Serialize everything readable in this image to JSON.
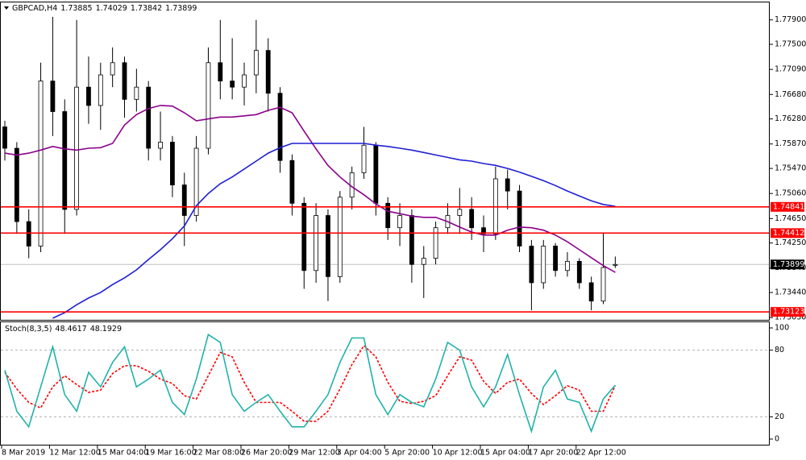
{
  "chart_data": [
    {
      "type": "candlestick",
      "title": "GBPCAD,H4",
      "categories": [
        "8 Mar 2019",
        null,
        null,
        null,
        "12 Mar 12:00",
        null,
        null,
        null,
        "15 Mar 04:00",
        null,
        null,
        null,
        "19 Mar 16:00",
        null,
        null,
        null,
        "22 Mar 08:00",
        null,
        null,
        null,
        "26 Mar 20:00",
        null,
        null,
        null,
        "29 Mar 12:00",
        null,
        null,
        null,
        "3 Apr 04:00",
        null,
        null,
        null,
        "5 Apr 20:00",
        null,
        null,
        null,
        "10 Apr 12:00",
        null,
        null,
        null,
        "15 Apr 04:00",
        null,
        null,
        null,
        "17 Apr 20:00",
        null,
        null,
        null,
        "22 Apr 12:00",
        null,
        null,
        null
      ],
      "open": [
        1.7615,
        1.758,
        1.746,
        1.742,
        1.769,
        1.764,
        1.748,
        1.768,
        1.765,
        1.77,
        1.772,
        1.766,
        1.768,
        1.758,
        1.759,
        1.752,
        1.747,
        1.758,
        1.772,
        1.769,
        1.768,
        1.77,
        1.774,
        1.767,
        1.756,
        1.749,
        1.738,
        1.747,
        1.737,
        1.75,
        1.754,
        1.7585,
        1.749,
        1.745,
        1.747,
        1.739,
        1.74,
        1.745,
        1.747,
        1.748,
        1.745,
        1.744,
        1.753,
        1.751,
        1.742,
        1.736,
        1.742,
        1.738,
        1.7395,
        1.736,
        1.733,
        1.73885
      ],
      "high": [
        1.7625,
        1.759,
        1.748,
        1.772,
        1.7795,
        1.766,
        1.779,
        1.773,
        1.772,
        1.7745,
        1.773,
        1.771,
        1.769,
        1.764,
        1.76,
        1.754,
        1.76,
        1.7745,
        1.779,
        1.776,
        1.772,
        1.779,
        1.776,
        1.768,
        1.757,
        1.75,
        1.749,
        1.748,
        1.751,
        1.755,
        1.7615,
        1.759,
        1.75,
        1.749,
        1.748,
        1.742,
        1.746,
        1.749,
        1.7515,
        1.75,
        1.747,
        1.755,
        1.7545,
        1.752,
        1.743,
        1.743,
        1.7425,
        1.741,
        1.74,
        1.737,
        1.7442,
        1.74029
      ],
      "low": [
        1.756,
        1.744,
        1.74,
        1.741,
        1.76,
        1.744,
        1.747,
        1.762,
        1.761,
        1.768,
        1.763,
        1.764,
        1.756,
        1.756,
        1.75,
        1.742,
        1.746,
        1.757,
        1.766,
        1.766,
        1.765,
        1.767,
        1.764,
        1.754,
        1.747,
        1.735,
        1.736,
        1.733,
        1.736,
        1.748,
        1.753,
        1.747,
        1.743,
        1.742,
        1.736,
        1.7335,
        1.739,
        1.744,
        1.744,
        1.743,
        1.741,
        1.743,
        1.748,
        1.741,
        1.7315,
        1.735,
        1.737,
        1.737,
        1.735,
        1.7315,
        1.7325,
        1.73842
      ],
      "close": [
        1.758,
        1.746,
        1.742,
        1.769,
        1.764,
        1.748,
        1.768,
        1.765,
        1.77,
        1.772,
        1.766,
        1.768,
        1.758,
        1.759,
        1.752,
        1.747,
        1.758,
        1.772,
        1.769,
        1.768,
        1.77,
        1.774,
        1.767,
        1.756,
        1.749,
        1.738,
        1.747,
        1.737,
        1.75,
        1.754,
        1.7585,
        1.749,
        1.745,
        1.747,
        1.739,
        1.74,
        1.745,
        1.747,
        1.748,
        1.745,
        1.744,
        1.753,
        1.751,
        1.742,
        1.736,
        1.742,
        1.738,
        1.7395,
        1.736,
        1.733,
        1.7385,
        1.73899
      ],
      "up_color": "#ffffff",
      "down_color": "#000000",
      "outline_color": "#000000",
      "moving_averages": [
        {
          "color": "#8b008b",
          "values": [
            1.7572,
            1.7569,
            1.7572,
            1.7577,
            1.7583,
            1.7579,
            1.7577,
            1.758,
            1.7581,
            1.7588,
            1.7618,
            1.7635,
            1.7645,
            1.765,
            1.7649,
            1.7638,
            1.7625,
            1.7628,
            1.7631,
            1.7631,
            1.7633,
            1.7635,
            1.7642,
            1.7647,
            1.7638,
            1.7608,
            1.7579,
            1.7552,
            1.7533,
            1.7517,
            1.7504,
            1.7489,
            1.7477,
            1.7473,
            1.7469,
            1.7467,
            1.7467,
            1.746,
            1.7451,
            1.7443,
            1.7438,
            1.7438,
            1.7446,
            1.7451,
            1.745,
            1.7446,
            1.7438,
            1.7427,
            1.7414,
            1.7401,
            1.7388,
            1.7377
          ]
        },
        {
          "color": "#1f1fd6",
          "values": [
            null,
            null,
            null,
            null,
            1.7302,
            1.7311,
            1.7324,
            1.7335,
            1.7344,
            1.7357,
            1.7368,
            1.7381,
            1.7398,
            1.7414,
            1.7432,
            1.7453,
            1.7486,
            1.7506,
            1.7522,
            1.7533,
            1.7546,
            1.7559,
            1.7572,
            1.7581,
            1.7588,
            1.7588,
            1.7588,
            1.7588,
            1.7588,
            1.7588,
            1.7588,
            1.7585,
            1.7583,
            1.758,
            1.7577,
            1.7573,
            1.7569,
            1.7565,
            1.7561,
            1.7559,
            1.7555,
            1.7552,
            1.7547,
            1.7541,
            1.7534,
            1.7527,
            1.7519,
            1.751,
            1.7502,
            1.7494,
            1.7488,
            1.7485
          ]
        }
      ],
      "hlines": [
        {
          "value": 1.74841,
          "color": "#ff0000"
        },
        {
          "value": 1.74412,
          "color": "#ff0000"
        },
        {
          "value": 1.73123,
          "color": "#ff0000"
        }
      ],
      "current_price_line": true,
      "ylim": [
        1.7298,
        1.7812
      ],
      "yticks": [
        {
          "value": 1.779,
          "label": "1.77900"
        },
        {
          "value": 1.775,
          "label": "1.77500"
        },
        {
          "value": 1.7709,
          "label": "1.77090"
        },
        {
          "value": 1.7668,
          "label": "1.76680"
        },
        {
          "value": 1.7628,
          "label": "1.76280"
        },
        {
          "value": 1.7587,
          "label": "1.75870"
        },
        {
          "value": 1.7547,
          "label": "1.75470"
        },
        {
          "value": 1.7506,
          "label": "1.75060"
        },
        {
          "value": 1.7465,
          "label": "1.74650"
        },
        {
          "value": 1.7425,
          "label": "1.74250"
        },
        {
          "value": 1.7384,
          "label": "1.73840"
        },
        {
          "value": 1.7344,
          "label": "1.73440"
        },
        {
          "value": 1.7303,
          "label": "1.73030"
        }
      ]
    },
    {
      "type": "line",
      "title": "Stoch(8,3,5)",
      "series": [
        {
          "color": "#20b2aa",
          "dashed": false,
          "values": [
            62,
            25,
            11,
            47,
            83,
            40,
            25,
            60,
            47,
            69,
            83,
            47,
            54,
            62,
            33,
            22,
            54,
            94,
            87,
            40,
            25,
            33,
            40,
            25,
            11,
            11,
            25,
            40,
            69,
            91,
            91,
            40,
            22,
            40,
            33,
            29,
            54,
            87,
            80,
            47,
            29,
            47,
            76,
            40,
            7,
            47,
            62,
            36,
            33,
            7,
            36,
            48.4617
          ]
        },
        {
          "color": "#ff0000",
          "dashed": true,
          "values": [
            60,
            45,
            33,
            28,
            47,
            57,
            49,
            42,
            44,
            59,
            66,
            66,
            61,
            54,
            50,
            39,
            36,
            57,
            78,
            74,
            51,
            33,
            33,
            33,
            25,
            16,
            16,
            25,
            45,
            67,
            84,
            74,
            51,
            34,
            32,
            34,
            39,
            57,
            74,
            71,
            52,
            41,
            51,
            54,
            41,
            31,
            39,
            48,
            44,
            25,
            25,
            48.1929
          ]
        }
      ],
      "ylim": [
        -5.8,
        105.1
      ],
      "yticks": [
        0,
        20,
        80,
        100
      ],
      "levels": [
        20,
        80
      ]
    }
  ]
}
